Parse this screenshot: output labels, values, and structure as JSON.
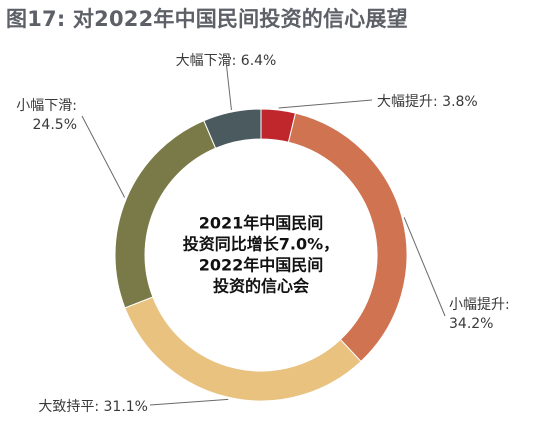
{
  "chart_data": {
    "type": "pie",
    "title": "图17: 对2022年中国民间投资的信心展望",
    "center_text": [
      "2021年中国民间",
      "投资同比增长7.0%，",
      "2022年中国民间",
      "投资的信心会"
    ],
    "slices": [
      {
        "name": "大幅提升",
        "value": 3.8,
        "label_line1": "大幅提升: 3.8%",
        "label_line2": "",
        "color": "#c0272d"
      },
      {
        "name": "小幅提升",
        "value": 34.2,
        "label_line1": "小幅提升:",
        "label_line2": "34.2%",
        "color": "#cf7351"
      },
      {
        "name": "大致持平",
        "value": 31.1,
        "label_line1": "大致持平: 31.1%",
        "label_line2": "",
        "color": "#e8c27e"
      },
      {
        "name": "小幅下滑",
        "value": 24.5,
        "label_line1": "小幅下滑:",
        "label_line2": "24.5%",
        "color": "#7a7a48"
      },
      {
        "name": "大幅下滑",
        "value": 6.4,
        "label_line1": "大幅下滑: 6.4%",
        "label_line2": "",
        "color": "#4b5a5f"
      }
    ],
    "legend": "none",
    "grid": false
  }
}
